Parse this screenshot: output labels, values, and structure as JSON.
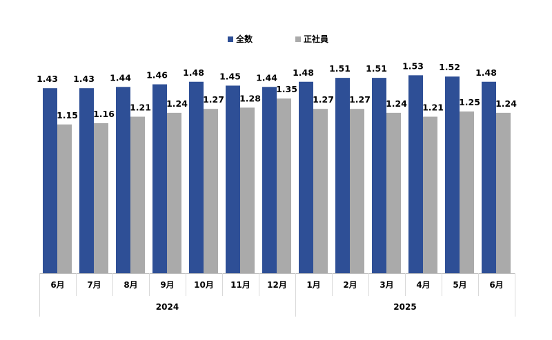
{
  "chart_data": {
    "type": "bar",
    "title": "",
    "xlabel": "",
    "ylabel": "",
    "ylim": [
      0,
      1.6
    ],
    "grid": false,
    "legend_position": "top-center",
    "categories": [
      "6月",
      "7月",
      "8月",
      "9月",
      "10月",
      "11月",
      "12月",
      "1月",
      "2月",
      "3月",
      "4月",
      "5月",
      "6月"
    ],
    "year_groups": [
      {
        "label": "2024",
        "count": 7
      },
      {
        "label": "2025",
        "count": 6
      }
    ],
    "series": [
      {
        "name": "全数",
        "color": "#2e4f96",
        "values": [
          1.43,
          1.43,
          1.44,
          1.46,
          1.48,
          1.45,
          1.44,
          1.48,
          1.51,
          1.51,
          1.53,
          1.52,
          1.48
        ]
      },
      {
        "name": "正社員",
        "color": "#aaaaaa",
        "values": [
          1.15,
          1.16,
          1.21,
          1.24,
          1.27,
          1.28,
          1.35,
          1.27,
          1.27,
          1.24,
          1.21,
          1.25,
          1.24
        ]
      }
    ]
  }
}
